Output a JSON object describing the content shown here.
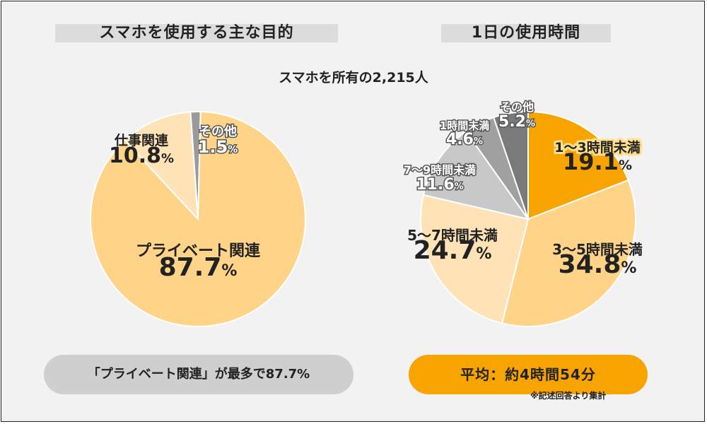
{
  "headings": {
    "left": "スマホを使用する主な目的",
    "right": "1日の使用時間"
  },
  "subtitle": "スマホを所有の2,215人",
  "colors": {
    "background": "#f2f2f2",
    "left_pill": "#cfcfcf",
    "right_pill": "#f7a400"
  },
  "chart_data": [
    {
      "type": "pie",
      "title": "スマホを使用する主な目的",
      "unit": "%",
      "slices": [
        {
          "label": "その他",
          "value": 1.5,
          "value_text": "1.5",
          "color": "#9a9a9a"
        },
        {
          "label": "プライベート関連",
          "value": 87.7,
          "value_text": "87.7",
          "color": "#ffd488"
        },
        {
          "label": "仕事関連",
          "value": 10.8,
          "value_text": "10.8",
          "color": "#ffe3b6"
        }
      ]
    },
    {
      "type": "pie",
      "title": "1日の使用時間",
      "unit": "%",
      "slices": [
        {
          "label": "1〜3時間未満",
          "value": 19.1,
          "value_text": "19.1",
          "color": "#f7a400"
        },
        {
          "label": "3〜5時間未満",
          "value": 34.8,
          "value_text": "34.8",
          "color": "#ffd488"
        },
        {
          "label": "5〜7時間未満",
          "value": 24.7,
          "value_text": "24.7",
          "color": "#ffe3b6"
        },
        {
          "label": "7〜9時間未満",
          "value": 11.6,
          "value_text": "11.6",
          "color": "#c8c8c8"
        },
        {
          "label": "1時間未満",
          "value": 4.6,
          "value_text": "4.6",
          "color": "#a0a0a0"
        },
        {
          "label": "その他",
          "value": 5.2,
          "value_text": "5.2",
          "color": "#7a7a7a"
        }
      ]
    }
  ],
  "summary_left": "「プライベート関連」が最多で87.7%",
  "summary_right": "平均：約4時間54分",
  "footnote": "※記述回答より集計"
}
